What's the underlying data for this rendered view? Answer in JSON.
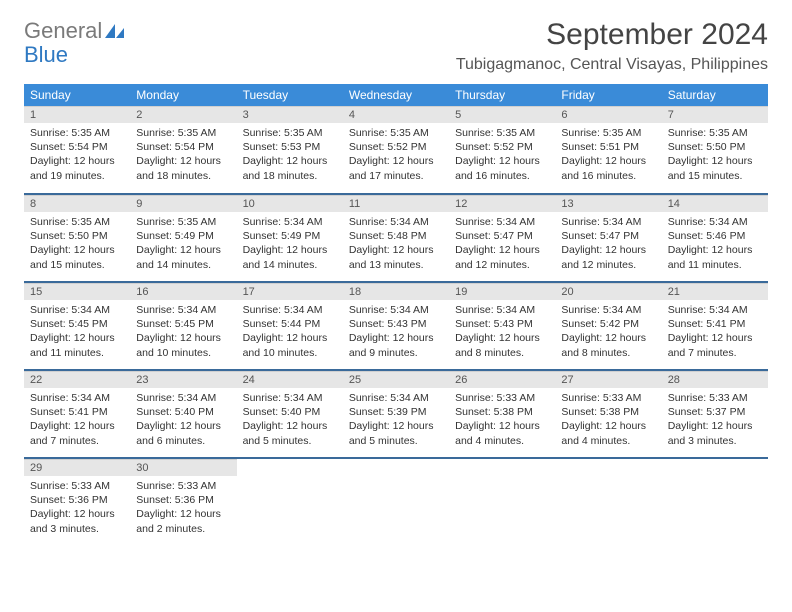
{
  "logo": {
    "text1": "General",
    "text2": "Blue"
  },
  "title": "September 2024",
  "location": "Tubigagmanoc, Central Visayas, Philippines",
  "colors": {
    "header_bg": "#3a8bd8",
    "header_text": "#ffffff",
    "row_divider": "#3a6a9a",
    "daynum_bg": "#e6e6e6",
    "logo_gray": "#7a7a7a",
    "logo_blue": "#2f79c2",
    "body_text": "#333333"
  },
  "weekdays": [
    "Sunday",
    "Monday",
    "Tuesday",
    "Wednesday",
    "Thursday",
    "Friday",
    "Saturday"
  ],
  "days": [
    {
      "n": "1",
      "sunrise": "5:35 AM",
      "sunset": "5:54 PM",
      "day_l1": "Daylight: 12 hours",
      "day_l2": "and 19 minutes."
    },
    {
      "n": "2",
      "sunrise": "5:35 AM",
      "sunset": "5:54 PM",
      "day_l1": "Daylight: 12 hours",
      "day_l2": "and 18 minutes."
    },
    {
      "n": "3",
      "sunrise": "5:35 AM",
      "sunset": "5:53 PM",
      "day_l1": "Daylight: 12 hours",
      "day_l2": "and 18 minutes."
    },
    {
      "n": "4",
      "sunrise": "5:35 AM",
      "sunset": "5:52 PM",
      "day_l1": "Daylight: 12 hours",
      "day_l2": "and 17 minutes."
    },
    {
      "n": "5",
      "sunrise": "5:35 AM",
      "sunset": "5:52 PM",
      "day_l1": "Daylight: 12 hours",
      "day_l2": "and 16 minutes."
    },
    {
      "n": "6",
      "sunrise": "5:35 AM",
      "sunset": "5:51 PM",
      "day_l1": "Daylight: 12 hours",
      "day_l2": "and 16 minutes."
    },
    {
      "n": "7",
      "sunrise": "5:35 AM",
      "sunset": "5:50 PM",
      "day_l1": "Daylight: 12 hours",
      "day_l2": "and 15 minutes."
    },
    {
      "n": "8",
      "sunrise": "5:35 AM",
      "sunset": "5:50 PM",
      "day_l1": "Daylight: 12 hours",
      "day_l2": "and 15 minutes."
    },
    {
      "n": "9",
      "sunrise": "5:35 AM",
      "sunset": "5:49 PM",
      "day_l1": "Daylight: 12 hours",
      "day_l2": "and 14 minutes."
    },
    {
      "n": "10",
      "sunrise": "5:34 AM",
      "sunset": "5:49 PM",
      "day_l1": "Daylight: 12 hours",
      "day_l2": "and 14 minutes."
    },
    {
      "n": "11",
      "sunrise": "5:34 AM",
      "sunset": "5:48 PM",
      "day_l1": "Daylight: 12 hours",
      "day_l2": "and 13 minutes."
    },
    {
      "n": "12",
      "sunrise": "5:34 AM",
      "sunset": "5:47 PM",
      "day_l1": "Daylight: 12 hours",
      "day_l2": "and 12 minutes."
    },
    {
      "n": "13",
      "sunrise": "5:34 AM",
      "sunset": "5:47 PM",
      "day_l1": "Daylight: 12 hours",
      "day_l2": "and 12 minutes."
    },
    {
      "n": "14",
      "sunrise": "5:34 AM",
      "sunset": "5:46 PM",
      "day_l1": "Daylight: 12 hours",
      "day_l2": "and 11 minutes."
    },
    {
      "n": "15",
      "sunrise": "5:34 AM",
      "sunset": "5:45 PM",
      "day_l1": "Daylight: 12 hours",
      "day_l2": "and 11 minutes."
    },
    {
      "n": "16",
      "sunrise": "5:34 AM",
      "sunset": "5:45 PM",
      "day_l1": "Daylight: 12 hours",
      "day_l2": "and 10 minutes."
    },
    {
      "n": "17",
      "sunrise": "5:34 AM",
      "sunset": "5:44 PM",
      "day_l1": "Daylight: 12 hours",
      "day_l2": "and 10 minutes."
    },
    {
      "n": "18",
      "sunrise": "5:34 AM",
      "sunset": "5:43 PM",
      "day_l1": "Daylight: 12 hours",
      "day_l2": "and 9 minutes."
    },
    {
      "n": "19",
      "sunrise": "5:34 AM",
      "sunset": "5:43 PM",
      "day_l1": "Daylight: 12 hours",
      "day_l2": "and 8 minutes."
    },
    {
      "n": "20",
      "sunrise": "5:34 AM",
      "sunset": "5:42 PM",
      "day_l1": "Daylight: 12 hours",
      "day_l2": "and 8 minutes."
    },
    {
      "n": "21",
      "sunrise": "5:34 AM",
      "sunset": "5:41 PM",
      "day_l1": "Daylight: 12 hours",
      "day_l2": "and 7 minutes."
    },
    {
      "n": "22",
      "sunrise": "5:34 AM",
      "sunset": "5:41 PM",
      "day_l1": "Daylight: 12 hours",
      "day_l2": "and 7 minutes."
    },
    {
      "n": "23",
      "sunrise": "5:34 AM",
      "sunset": "5:40 PM",
      "day_l1": "Daylight: 12 hours",
      "day_l2": "and 6 minutes."
    },
    {
      "n": "24",
      "sunrise": "5:34 AM",
      "sunset": "5:40 PM",
      "day_l1": "Daylight: 12 hours",
      "day_l2": "and 5 minutes."
    },
    {
      "n": "25",
      "sunrise": "5:34 AM",
      "sunset": "5:39 PM",
      "day_l1": "Daylight: 12 hours",
      "day_l2": "and 5 minutes."
    },
    {
      "n": "26",
      "sunrise": "5:33 AM",
      "sunset": "5:38 PM",
      "day_l1": "Daylight: 12 hours",
      "day_l2": "and 4 minutes."
    },
    {
      "n": "27",
      "sunrise": "5:33 AM",
      "sunset": "5:38 PM",
      "day_l1": "Daylight: 12 hours",
      "day_l2": "and 4 minutes."
    },
    {
      "n": "28",
      "sunrise": "5:33 AM",
      "sunset": "5:37 PM",
      "day_l1": "Daylight: 12 hours",
      "day_l2": "and 3 minutes."
    },
    {
      "n": "29",
      "sunrise": "5:33 AM",
      "sunset": "5:36 PM",
      "day_l1": "Daylight: 12 hours",
      "day_l2": "and 3 minutes."
    },
    {
      "n": "30",
      "sunrise": "5:33 AM",
      "sunset": "5:36 PM",
      "day_l1": "Daylight: 12 hours",
      "day_l2": "and 2 minutes."
    }
  ],
  "labels": {
    "sunrise": "Sunrise:",
    "sunset": "Sunset:"
  }
}
